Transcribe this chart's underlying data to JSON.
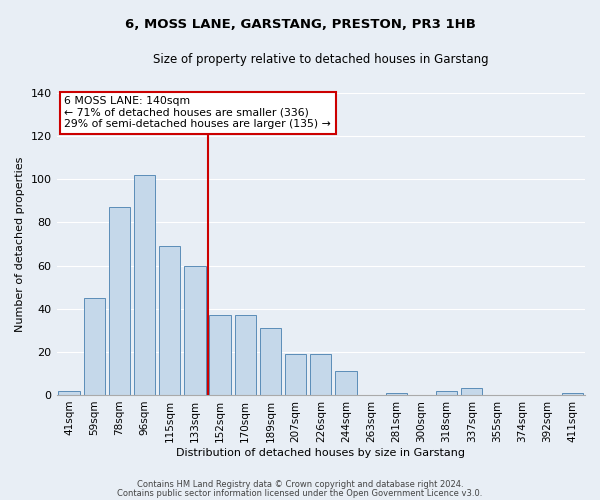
{
  "title": "6, MOSS LANE, GARSTANG, PRESTON, PR3 1HB",
  "subtitle": "Size of property relative to detached houses in Garstang",
  "xlabel": "Distribution of detached houses by size in Garstang",
  "ylabel": "Number of detached properties",
  "bar_color": "#c5d8ea",
  "bar_edge_color": "#5b8db8",
  "background_color": "#e8eef5",
  "grid_color": "#ffffff",
  "categories": [
    "41sqm",
    "59sqm",
    "78sqm",
    "96sqm",
    "115sqm",
    "133sqm",
    "152sqm",
    "170sqm",
    "189sqm",
    "207sqm",
    "226sqm",
    "244sqm",
    "263sqm",
    "281sqm",
    "300sqm",
    "318sqm",
    "337sqm",
    "355sqm",
    "374sqm",
    "392sqm",
    "411sqm"
  ],
  "values": [
    2,
    45,
    87,
    102,
    69,
    60,
    37,
    37,
    31,
    19,
    19,
    11,
    0,
    1,
    0,
    2,
    3,
    0,
    0,
    0,
    1
  ],
  "vline_x_index": 5.5,
  "vline_color": "#cc0000",
  "vline_label": "6 MOSS LANE: 140sqm",
  "annotation_line1": "← 71% of detached houses are smaller (336)",
  "annotation_line2": "29% of semi-detached houses are larger (135) →",
  "box_edge_color": "#cc0000",
  "ylim": [
    0,
    140
  ],
  "yticks": [
    0,
    20,
    40,
    60,
    80,
    100,
    120,
    140
  ],
  "footer1": "Contains HM Land Registry data © Crown copyright and database right 2024.",
  "footer2": "Contains public sector information licensed under the Open Government Licence v3.0."
}
